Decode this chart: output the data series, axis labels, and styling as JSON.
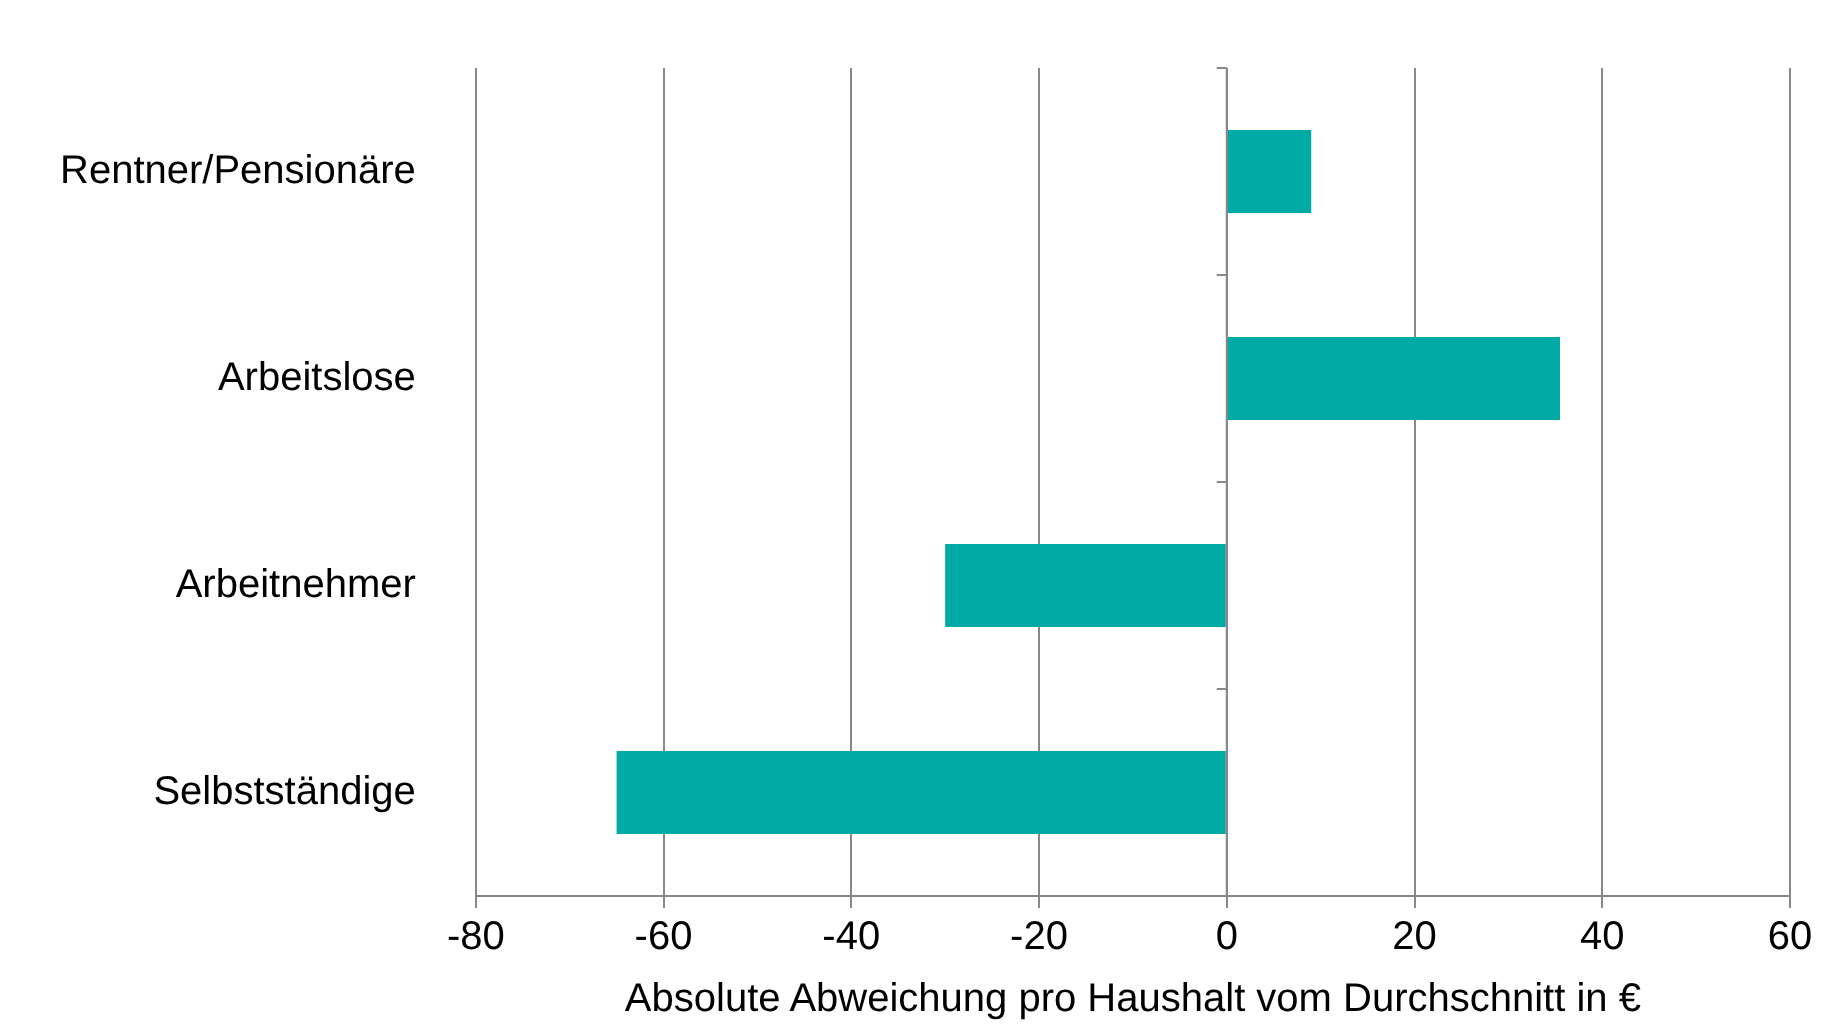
{
  "chart_data": {
    "type": "bar",
    "orientation": "horizontal",
    "xlabel": "Absolute Abweichung pro Haushalt vom Durchschnitt in €",
    "categories": [
      "Rentner/Pensionäre",
      "Arbeitslose",
      "Arbeitnehmer",
      "Selbstständige"
    ],
    "values": [
      9,
      35.5,
      -30,
      -65
    ],
    "color": "#00aba6",
    "xlim": [
      -80,
      60
    ],
    "xticks": [
      -80,
      -60,
      -40,
      -20,
      0,
      20,
      40,
      60
    ],
    "grid": "x"
  }
}
